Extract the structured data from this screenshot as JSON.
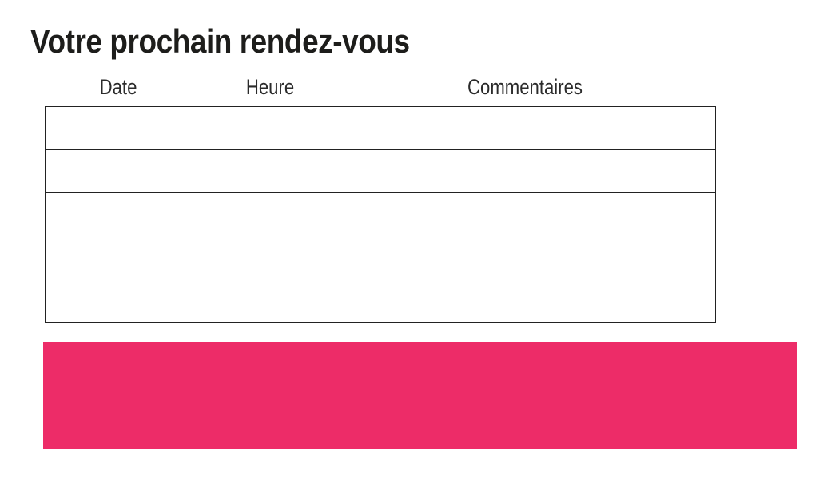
{
  "page": {
    "title": "Votre prochain rendez-vous"
  },
  "table": {
    "headers": [
      "Date",
      "Heure",
      "Commentaires"
    ],
    "rows": [
      [
        "",
        "",
        ""
      ],
      [
        "",
        "",
        ""
      ],
      [
        "",
        "",
        ""
      ],
      [
        "",
        "",
        ""
      ],
      [
        "",
        "",
        ""
      ]
    ]
  },
  "banner": {
    "color": "#ED2C68"
  }
}
